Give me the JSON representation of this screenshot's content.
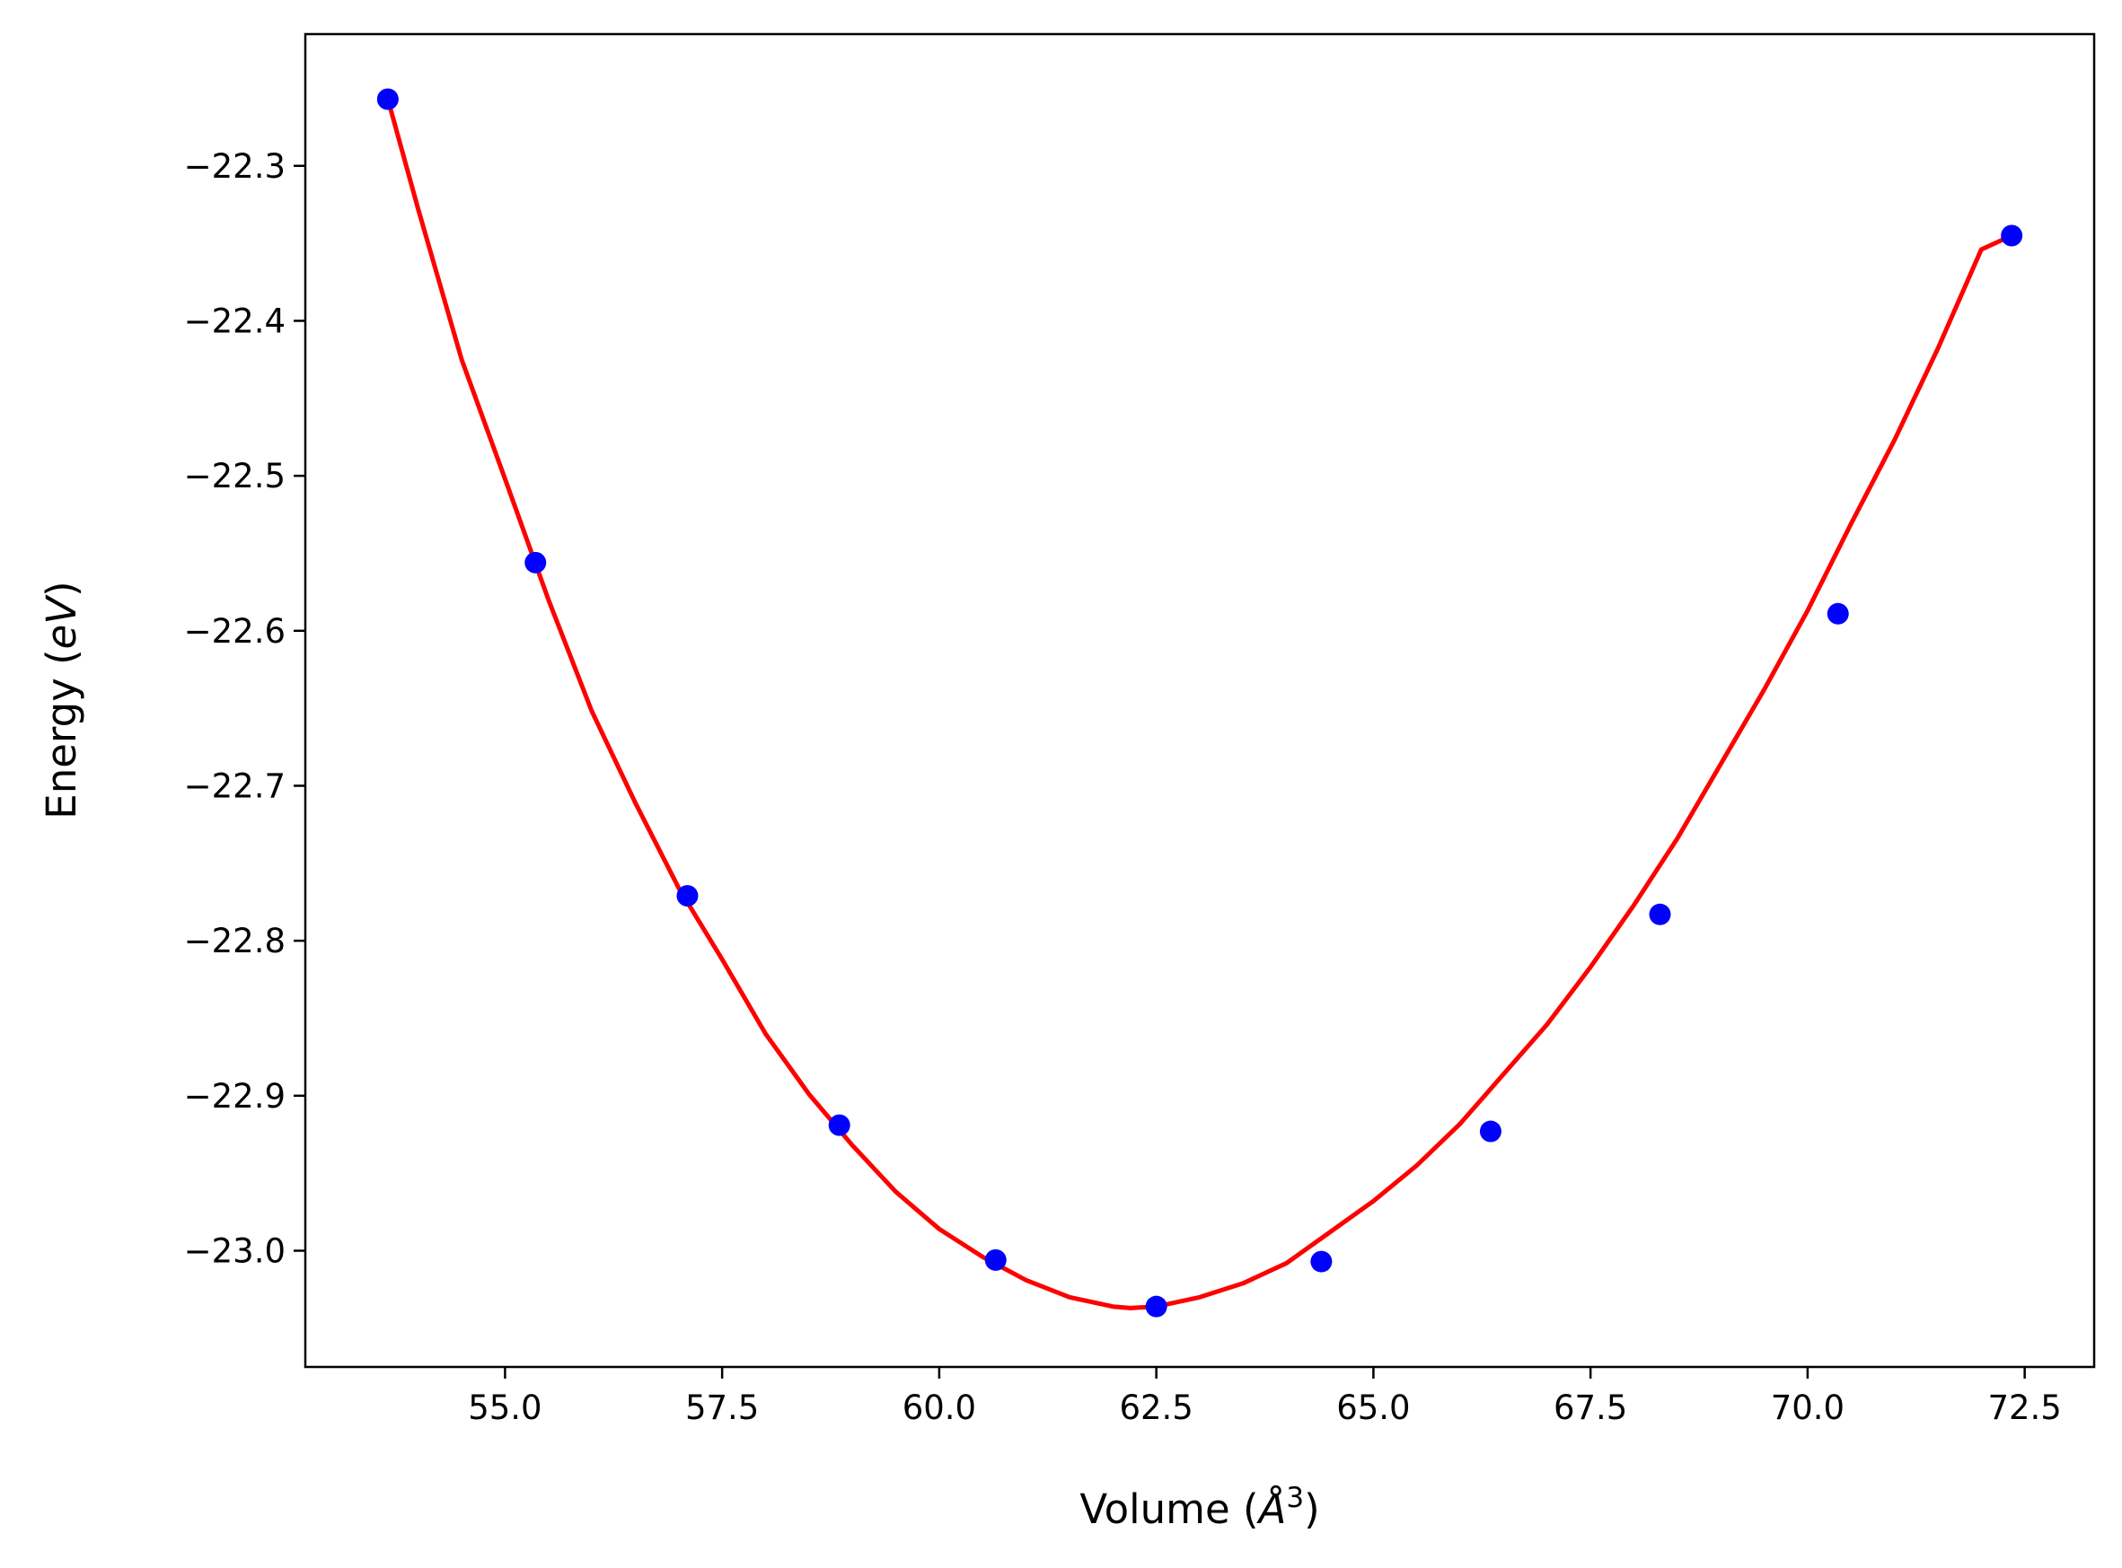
{
  "chart_data": {
    "type": "scatter",
    "xlabel": "Volume (",
    "xlabel_symbol": "Å",
    "xlabel_exp": "3",
    "xlabel_close": ")",
    "ylabel": "Energy (",
    "ylabel_unit": "eV",
    "ylabel_close": ")",
    "xlim": [
      52.7,
      73.3
    ],
    "ylim": [
      -23.075,
      -22.215
    ],
    "grid": false,
    "legend": "none",
    "x_ticks": [
      {
        "value": 55.0,
        "label": "55.0"
      },
      {
        "value": 57.5,
        "label": "57.5"
      },
      {
        "value": 60.0,
        "label": "60.0"
      },
      {
        "value": 62.5,
        "label": "62.5"
      },
      {
        "value": 65.0,
        "label": "65.0"
      },
      {
        "value": 67.5,
        "label": "67.5"
      },
      {
        "value": 70.0,
        "label": "70.0"
      },
      {
        "value": 72.5,
        "label": "72.5"
      }
    ],
    "y_ticks": [
      {
        "value": -22.3,
        "label": "−22.3"
      },
      {
        "value": -22.4,
        "label": "−22.4"
      },
      {
        "value": -22.5,
        "label": "−22.5"
      },
      {
        "value": -22.6,
        "label": "−22.6"
      },
      {
        "value": -22.7,
        "label": "−22.7"
      },
      {
        "value": -22.8,
        "label": "−22.8"
      },
      {
        "value": -22.9,
        "label": "−22.9"
      },
      {
        "value": -23.0,
        "label": "−23.0"
      }
    ],
    "series": [
      {
        "kind": "points",
        "color": "#0000ff",
        "x": [
          53.65,
          55.35,
          57.1,
          58.85,
          60.65,
          62.5,
          64.4,
          66.35,
          68.3,
          70.35,
          72.35
        ],
        "y": [
          -22.257,
          -22.556,
          -22.771,
          -22.919,
          -23.006,
          -23.036,
          -23.007,
          -22.923,
          -22.783,
          -22.589,
          -22.345
        ]
      },
      {
        "kind": "fit",
        "color": "#ff0000",
        "x": [
          53.65,
          54.0,
          54.5,
          55.0,
          55.5,
          56.0,
          56.5,
          57.0,
          57.5,
          58.0,
          58.5,
          59.0,
          59.5,
          60.0,
          60.5,
          61.0,
          61.5,
          62.0,
          62.2,
          62.5,
          63.0,
          63.5,
          64.0,
          64.5,
          65.0,
          65.5,
          66.0,
          66.5,
          67.0,
          67.5,
          68.0,
          68.5,
          69.0,
          69.5,
          70.0,
          70.5,
          71.0,
          71.5,
          72.0,
          72.35
        ],
        "y": [
          -22.257,
          -22.328,
          -22.425,
          -22.502,
          -22.58,
          -22.652,
          -22.711,
          -22.766,
          -22.812,
          -22.86,
          -22.899,
          -22.932,
          -22.962,
          -22.986,
          -23.004,
          -23.019,
          -23.03,
          -23.036,
          -23.037,
          -23.036,
          -23.03,
          -23.021,
          -23.008,
          -22.988,
          -22.968,
          -22.945,
          -22.918,
          -22.886,
          -22.854,
          -22.817,
          -22.777,
          -22.734,
          -22.686,
          -22.638,
          -22.587,
          -22.531,
          -22.477,
          -22.418,
          -22.354,
          -22.345
        ]
      }
    ]
  }
}
